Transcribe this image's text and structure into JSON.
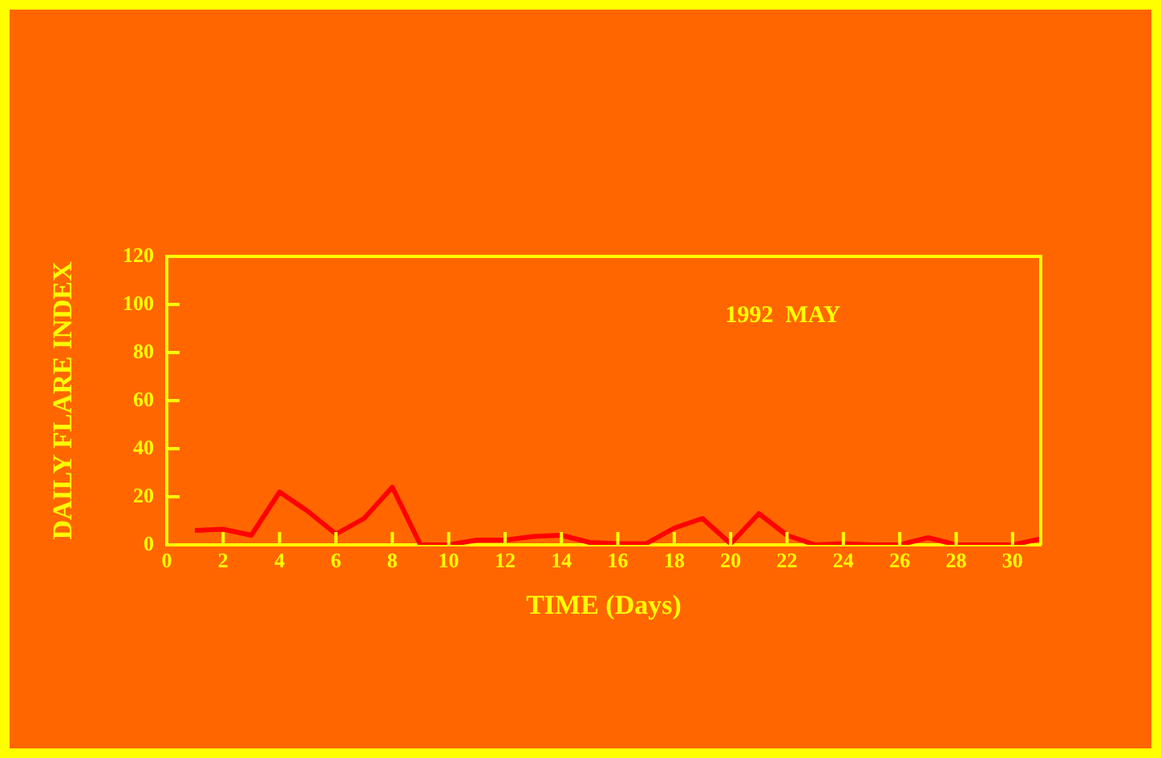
{
  "chart_data": {
    "type": "line",
    "xlabel": "TIME (Days)",
    "ylabel": "DAILY FLARE INDEX",
    "annotations": [
      "1992  MAY"
    ],
    "x": [
      1,
      2,
      3,
      4,
      5,
      6,
      7,
      8,
      9,
      10,
      11,
      12,
      13,
      14,
      15,
      16,
      17,
      18,
      19,
      20,
      21,
      22,
      23,
      24,
      25,
      26,
      27,
      28,
      29,
      30,
      31
    ],
    "series": [
      {
        "color": "#ff0000",
        "values": [
          6,
          6.5,
          4,
          22,
          14,
          4.5,
          11,
          24,
          0,
          0,
          2,
          2,
          3.5,
          4,
          1,
          0.5,
          0.5,
          7,
          11,
          0.5,
          13,
          4,
          0,
          0.5,
          0,
          0,
          3,
          0,
          0,
          0,
          2.5
        ]
      }
    ],
    "xlim": [
      0,
      31
    ],
    "xticks": [
      0,
      2,
      4,
      6,
      8,
      10,
      12,
      14,
      16,
      18,
      20,
      22,
      24,
      26,
      28,
      30
    ],
    "ylim": [
      0,
      120
    ],
    "yticks": [
      0,
      20,
      40,
      60,
      80,
      100,
      120
    ],
    "grid": false,
    "legend": false,
    "marker": "none",
    "line_style": "solid"
  }
}
